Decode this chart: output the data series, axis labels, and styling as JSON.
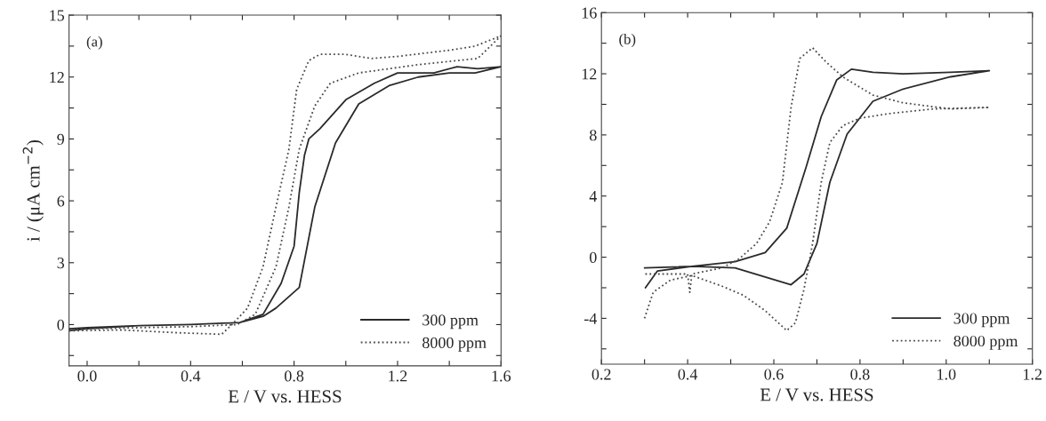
{
  "chart_data": [
    {
      "type": "line",
      "xlabel": "E / V vs. HESS",
      "ylabel": "i / (μA cm$^{−2}$)",
      "annotations": [
        "(a)"
      ],
      "xlim": [
        -0.07,
        1.6
      ],
      "ylim": [
        -2,
        15
      ],
      "xticks": [
        {
          "value": 0,
          "label": "0.0"
        },
        {
          "value": 0.2,
          "label": null
        },
        {
          "value": 0.4,
          "label": "0.4"
        },
        {
          "value": 0.6,
          "label": null
        },
        {
          "value": 0.8,
          "label": "0.8"
        },
        {
          "value": 1.0,
          "label": null
        },
        {
          "value": 1.2,
          "label": "1.2"
        },
        {
          "value": 1.4,
          "label": null
        },
        {
          "value": 1.6,
          "label": "1.6"
        }
      ],
      "yticks": [
        {
          "value": -1.5,
          "label": null
        },
        0,
        {
          "value": 1.5,
          "label": null
        },
        3,
        {
          "value": 4.5,
          "label": null
        },
        6,
        {
          "value": 7.5,
          "label": null
        },
        9,
        {
          "value": 10.5,
          "label": null
        },
        12,
        {
          "value": 13.5,
          "label": null
        },
        15
      ],
      "legend": "bottom right",
      "grid": false,
      "series": [
        {
          "name": "300 ppm",
          "color": "#2a2a2a",
          "line_style": "solid",
          "x": [
            -0.07,
            0.0,
            0.2,
            0.4,
            0.59,
            0.68,
            0.73,
            0.82,
            0.88,
            0.96,
            1.05,
            1.17,
            1.28,
            1.4,
            1.5,
            1.6,
            1.51,
            1.43,
            1.34,
            1.2,
            1.11,
            1.0,
            0.9,
            0.857,
            0.84,
            0.82,
            0.8,
            0.75,
            0.68,
            0.59,
            0.4,
            0.2,
            0.0,
            -0.07
          ],
          "values": [
            -0.3,
            -0.2,
            -0.05,
            0.0,
            0.1,
            0.4,
            0.8,
            1.8,
            5.7,
            8.8,
            10.7,
            11.6,
            12.0,
            12.2,
            12.2,
            12.5,
            12.4,
            12.5,
            12.2,
            12.2,
            11.7,
            10.9,
            9.5,
            9.0,
            8.2,
            6.4,
            3.8,
            2.0,
            0.5,
            0.1,
            0.0,
            -0.05,
            -0.15,
            -0.2
          ]
        },
        {
          "name": "8000 ppm",
          "color": "#4a4a4a",
          "line_style": "dotted",
          "x": [
            -0.07,
            0.13,
            0.36,
            0.52,
            0.56,
            0.62,
            0.68,
            0.73,
            0.78,
            0.81,
            0.857,
            0.9,
            1.0,
            1.1,
            1.2,
            1.4,
            1.5,
            1.6,
            1.51,
            1.28,
            1.05,
            0.94,
            0.88,
            0.82,
            0.78,
            0.73,
            0.65,
            0.58,
            0.4,
            0.2,
            0.0,
            -0.07
          ],
          "values": [
            -0.3,
            -0.26,
            -0.4,
            -0.47,
            0.0,
            0.8,
            2.8,
            5.7,
            8.5,
            11.4,
            12.8,
            13.1,
            13.1,
            12.9,
            13.0,
            13.3,
            13.5,
            14.0,
            12.9,
            12.6,
            12.2,
            11.7,
            10.6,
            8.5,
            5.7,
            2.8,
            0.5,
            0.0,
            -0.1,
            -0.15,
            -0.2,
            -0.25
          ]
        }
      ]
    },
    {
      "type": "line",
      "xlabel": "E / V vs. HESS",
      "annotations": [
        "(b)"
      ],
      "xlim": [
        0.2,
        1.2
      ],
      "ylim": [
        -7,
        16
      ],
      "xticks": [
        0.2,
        {
          "value": 0.3,
          "label": null
        },
        0.4,
        {
          "value": 0.5,
          "label": null
        },
        0.6,
        {
          "value": 0.7,
          "label": null
        },
        0.8,
        {
          "value": 0.9,
          "label": null
        },
        {
          "value": 1.0,
          "label": "1.0"
        },
        {
          "value": 1.1,
          "label": null
        },
        1.2
      ],
      "yticks": [
        {
          "value": -6,
          "label": null
        },
        -4,
        {
          "value": -2,
          "label": null
        },
        0,
        {
          "value": 2,
          "label": null
        },
        4,
        {
          "value": 6,
          "label": null
        },
        8,
        {
          "value": 10,
          "label": null
        },
        12,
        {
          "value": 14,
          "label": null
        },
        16
      ],
      "legend": "bottom right",
      "grid": false,
      "series": [
        {
          "name": "300 ppm",
          "color": "#2a2a2a",
          "line_style": "solid",
          "x": [
            0.302,
            0.33,
            0.41,
            0.51,
            0.58,
            0.63,
            0.675,
            0.71,
            0.746,
            0.78,
            0.83,
            0.9,
            1.01,
            1.1,
            1.01,
            0.9,
            0.83,
            0.77,
            0.73,
            0.7,
            0.67,
            0.64,
            0.58,
            0.51,
            0.41,
            0.3
          ],
          "values": [
            -2.0,
            -0.9,
            -0.6,
            -0.3,
            0.3,
            1.9,
            5.9,
            9.2,
            11.6,
            12.3,
            12.1,
            12.0,
            12.1,
            12.2,
            11.8,
            11.0,
            10.2,
            8.05,
            4.9,
            0.9,
            -1.1,
            -1.8,
            -1.3,
            -0.7,
            -0.6,
            -0.7
          ]
        },
        {
          "name": "8000 ppm",
          "color": "#4a4a4a",
          "line_style": "dotted",
          "x": [
            0.3,
            0.32,
            0.36,
            0.41,
            0.48,
            0.53,
            0.58,
            0.63,
            0.65,
            0.67,
            0.69,
            0.71,
            0.73,
            0.76,
            0.8,
            0.87,
            0.97,
            1.1,
            1.01,
            0.9,
            0.83,
            0.76,
            0.72,
            0.69,
            0.66,
            0.64,
            0.62,
            0.59,
            0.56,
            0.52,
            0.48,
            0.41,
            0.405,
            0.4,
            0.34,
            0.3
          ],
          "values": [
            -4.0,
            -2.3,
            -1.5,
            -1.2,
            -1.9,
            -2.5,
            -3.5,
            -4.8,
            -4.3,
            -2.1,
            0.9,
            4.9,
            7.5,
            8.6,
            9.1,
            9.4,
            9.7,
            9.8,
            9.7,
            10.1,
            10.6,
            11.8,
            12.8,
            13.7,
            13.0,
            9.8,
            4.9,
            2.3,
            0.9,
            -0.1,
            -0.7,
            -1.1,
            -2.3,
            -1.1,
            -1.1,
            -1.1
          ]
        }
      ]
    }
  ]
}
